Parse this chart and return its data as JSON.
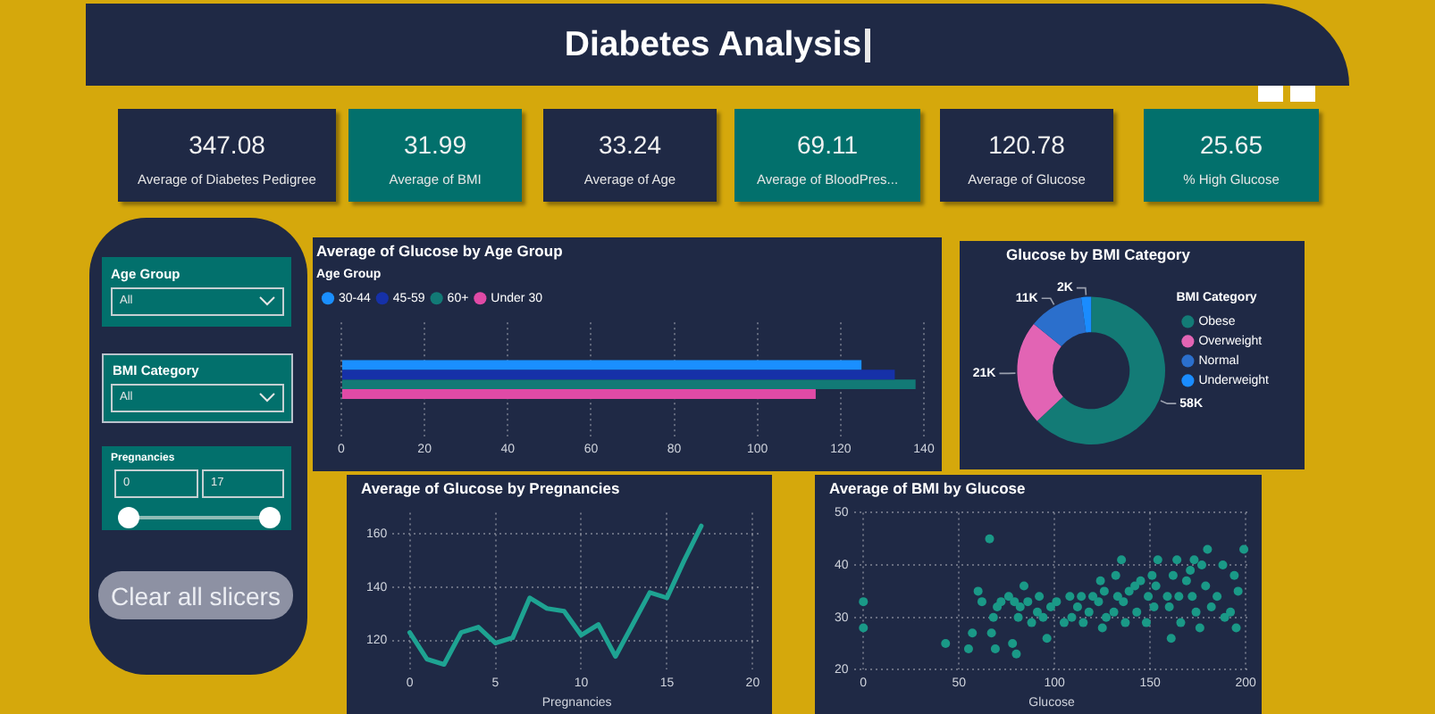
{
  "chart_data": [
    {
      "type": "other",
      "title": "Diabetes Analysis",
      "categories": [
        "Average of Diabetes Pedigree",
        "Average of BMI",
        "Average of Age",
        "Average of BloodPres...",
        "Average of Glucose",
        "% High Glucose"
      ],
      "values": [
        347.08,
        31.99,
        33.24,
        69.11,
        120.78,
        25.65
      ],
      "colors": [
        "#1f2945",
        "#02706c",
        "#1f2945",
        "#02706c",
        "#1f2945",
        "#02706c"
      ],
      "data_labels": true
    },
    {
      "type": "other",
      "annotations": [
        "Age Group",
        "All",
        "BMI Category",
        "All",
        "Pregnancies",
        "0",
        "17",
        "Clear all slicers"
      ]
    },
    {
      "type": "bar",
      "title": "Average of Glucose by Age Group",
      "orientation": "horizontal",
      "categories": [
        null
      ],
      "series": [
        {
          "name": "30-44",
          "color": "#1a8fff",
          "values": [
            125
          ]
        },
        {
          "name": "45-59",
          "color": "#1631a8",
          "values": [
            133
          ]
        },
        {
          "name": "60+",
          "color": "#127a76",
          "values": [
            138
          ]
        },
        {
          "name": "Under 30",
          "color": "#e04aa6",
          "values": [
            114
          ]
        }
      ],
      "xlim": [
        0,
        140
      ],
      "xticks": [
        0,
        20,
        40,
        60,
        80,
        100,
        120,
        140
      ],
      "grid": "x",
      "legend": "top left",
      "legend_title": "Age Group"
    },
    {
      "type": "donut",
      "title": "Glucose by BMI Category",
      "categories": [
        "Obese",
        "Overweight",
        "Normal",
        "Underweight"
      ],
      "values": [
        58000,
        21000,
        11000,
        2000
      ],
      "value_labels": [
        "58K",
        "21K",
        "11K",
        "2K"
      ],
      "colors": [
        "#137b76",
        "#e264b4",
        "#2b6fcc",
        "#1a8cff"
      ],
      "legend": "right",
      "legend_title": "BMI Category"
    },
    {
      "type": "line",
      "title": "Average of Glucose by Pregnancies",
      "xlabel": "Pregnancies",
      "x": [
        0,
        1,
        2,
        3,
        4,
        5,
        6,
        7,
        8,
        9,
        10,
        11,
        12,
        13,
        14,
        15,
        16,
        17
      ],
      "values": [
        123,
        113,
        111,
        123,
        125,
        119,
        121,
        136,
        132,
        131,
        122,
        126,
        114,
        126,
        138,
        136,
        150,
        163
      ],
      "color": "#1ea392",
      "xlim": [
        -1,
        20.5
      ],
      "xticks": [
        0,
        5,
        10,
        15,
        20
      ],
      "ylim": [
        109,
        168
      ],
      "yticks": [
        120,
        140,
        160
      ],
      "grid": true
    },
    {
      "type": "scatter",
      "title": "Average of BMI by Glucose",
      "xlabel": "Glucose",
      "x": [
        0,
        0,
        43,
        55,
        57,
        60,
        62,
        66,
        67,
        68,
        69,
        70,
        72,
        76,
        78,
        79,
        80,
        81,
        82,
        84,
        86,
        88,
        91,
        92,
        94,
        96,
        98,
        101,
        105,
        108,
        109,
        112,
        114,
        115,
        118,
        120,
        123,
        124,
        125,
        126,
        127,
        131,
        132,
        133,
        135,
        136,
        137,
        139,
        142,
        143,
        145,
        148,
        149,
        151,
        152,
        153,
        154,
        159,
        160,
        161,
        162,
        164,
        165,
        166,
        169,
        171,
        172,
        173,
        174,
        176,
        177,
        179,
        180,
        182,
        185,
        188,
        189,
        192,
        194,
        195,
        196,
        199
      ],
      "values": [
        33,
        28,
        25,
        24,
        27,
        35,
        33,
        45,
        27,
        30,
        24,
        32,
        33,
        34,
        25,
        33,
        23,
        30,
        32,
        36,
        33,
        29,
        31,
        34,
        30,
        26,
        32,
        33,
        29,
        34,
        30,
        32,
        34,
        29,
        31,
        34,
        33,
        37,
        28,
        35,
        30,
        31,
        38,
        34,
        41,
        33,
        29,
        35,
        36,
        31,
        37,
        29,
        34,
        38,
        32,
        36,
        41,
        34,
        32,
        26,
        38,
        41,
        34,
        29,
        37,
        39,
        34,
        41,
        31,
        28,
        40,
        36,
        43,
        32,
        34,
        40,
        30,
        31,
        38,
        28,
        35,
        43
      ],
      "color": "#1a9987",
      "marker": "circle",
      "xlim": [
        -5,
        202
      ],
      "xticks": [
        0,
        50,
        100,
        150,
        200
      ],
      "ylim": [
        20,
        50
      ],
      "yticks": [
        20,
        30,
        40,
        50
      ],
      "grid": true
    }
  ]
}
